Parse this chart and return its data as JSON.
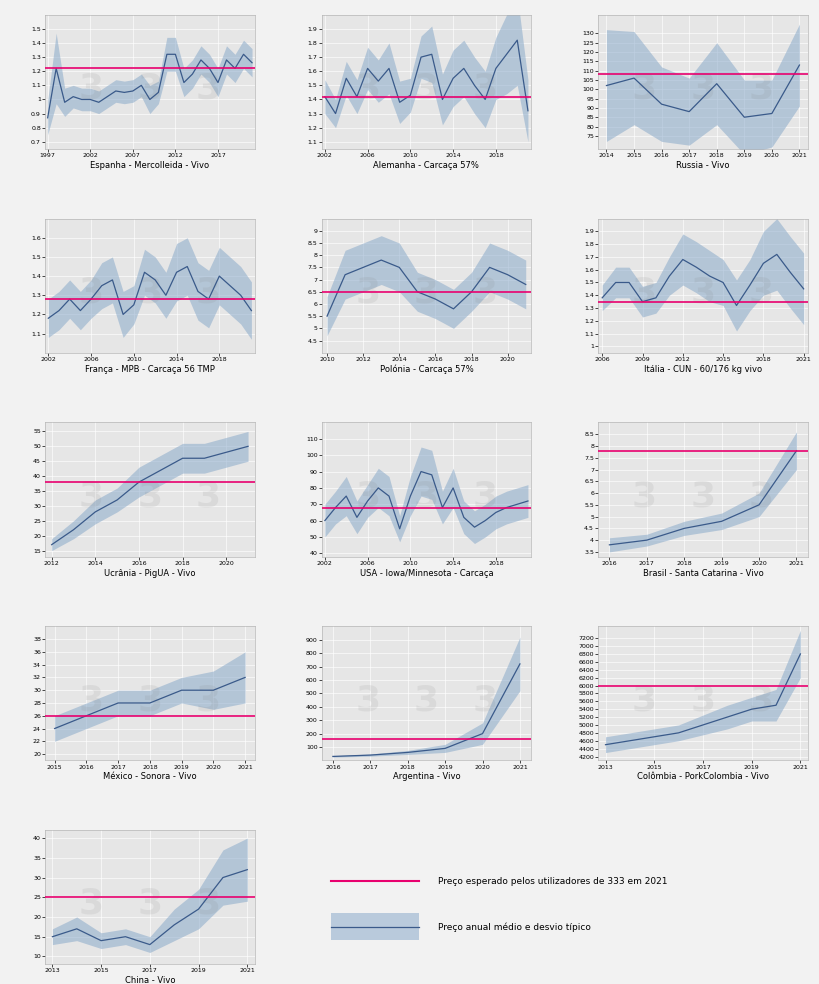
{
  "background_color": "#f2f2f2",
  "plot_bg_color": "#e6e6e6",
  "line_color": "#3a5a8a",
  "fill_color": "#8aaaca",
  "median_color": "#e8006e",
  "panels": [
    {
      "title": "Espanha - Mercolleida - Vivo",
      "years": [
        1997,
        1998,
        1999,
        2000,
        2001,
        2002,
        2003,
        2004,
        2005,
        2006,
        2007,
        2008,
        2009,
        2010,
        2011,
        2012,
        2013,
        2014,
        2015,
        2016,
        2017,
        2018,
        2019,
        2020,
        2021
      ],
      "mean": [
        0.87,
        1.22,
        0.98,
        1.02,
        1.0,
        1.0,
        0.98,
        1.02,
        1.06,
        1.05,
        1.06,
        1.1,
        1.0,
        1.05,
        1.32,
        1.32,
        1.12,
        1.18,
        1.28,
        1.22,
        1.12,
        1.28,
        1.22,
        1.32,
        1.26
      ],
      "std": [
        0.12,
        0.25,
        0.1,
        0.08,
        0.08,
        0.08,
        0.08,
        0.08,
        0.08,
        0.08,
        0.08,
        0.08,
        0.1,
        0.08,
        0.12,
        0.12,
        0.1,
        0.1,
        0.1,
        0.1,
        0.1,
        0.1,
        0.1,
        0.1,
        0.1
      ],
      "median": 1.22,
      "ylim": [
        0.65,
        1.6
      ],
      "yticks": [
        0.7,
        0.8,
        0.9,
        1.0,
        1.1,
        1.2,
        1.3,
        1.4,
        1.5
      ],
      "xtick_step": 5
    },
    {
      "title": "Alemanha - Carcaça 57%",
      "years": [
        2002,
        2003,
        2004,
        2005,
        2006,
        2007,
        2008,
        2009,
        2010,
        2011,
        2012,
        2013,
        2014,
        2015,
        2016,
        2017,
        2018,
        2019,
        2020,
        2021
      ],
      "mean": [
        1.42,
        1.3,
        1.55,
        1.42,
        1.62,
        1.53,
        1.62,
        1.38,
        1.43,
        1.7,
        1.72,
        1.4,
        1.55,
        1.62,
        1.5,
        1.4,
        1.62,
        1.72,
        1.82,
        1.32
      ],
      "std": [
        0.12,
        0.1,
        0.12,
        0.12,
        0.15,
        0.15,
        0.18,
        0.15,
        0.12,
        0.15,
        0.2,
        0.18,
        0.2,
        0.2,
        0.2,
        0.2,
        0.22,
        0.28,
        0.32,
        0.22
      ],
      "median": 1.42,
      "ylim": [
        1.05,
        2.0
      ],
      "yticks": [
        1.1,
        1.2,
        1.3,
        1.4,
        1.5,
        1.6,
        1.7,
        1.8,
        1.9
      ],
      "xtick_step": 4
    },
    {
      "title": "Russia - Vivo",
      "years": [
        2014,
        2015,
        2016,
        2017,
        2018,
        2019,
        2020,
        2021
      ],
      "mean": [
        102,
        106,
        92,
        88,
        103,
        85,
        87,
        113
      ],
      "std": [
        30,
        25,
        20,
        18,
        22,
        20,
        18,
        22
      ],
      "median": 108,
      "ylim": [
        68,
        140
      ],
      "yticks": [
        75,
        80,
        85,
        90,
        95,
        100,
        105,
        110,
        115,
        120,
        125,
        130
      ],
      "xtick_step": 1
    },
    {
      "title": "França - MPB - Carcaça 56 TMP",
      "years": [
        2002,
        2003,
        2004,
        2005,
        2006,
        2007,
        2008,
        2009,
        2010,
        2011,
        2012,
        2013,
        2014,
        2015,
        2016,
        2017,
        2018,
        2019,
        2020,
        2021
      ],
      "mean": [
        1.18,
        1.22,
        1.28,
        1.22,
        1.28,
        1.35,
        1.38,
        1.2,
        1.25,
        1.42,
        1.38,
        1.3,
        1.42,
        1.45,
        1.32,
        1.28,
        1.4,
        1.35,
        1.3,
        1.22
      ],
      "std": [
        0.1,
        0.1,
        0.1,
        0.1,
        0.1,
        0.12,
        0.12,
        0.12,
        0.1,
        0.12,
        0.12,
        0.12,
        0.15,
        0.15,
        0.15,
        0.15,
        0.15,
        0.15,
        0.15,
        0.15
      ],
      "median": 1.28,
      "ylim": [
        1.0,
        1.7
      ],
      "yticks": [
        1.1,
        1.2,
        1.3,
        1.4,
        1.5,
        1.6
      ],
      "xtick_step": 4
    },
    {
      "title": "Polónia - Carcaça 57%",
      "years": [
        2010,
        2011,
        2012,
        2013,
        2014,
        2015,
        2016,
        2017,
        2018,
        2019,
        2020,
        2021
      ],
      "mean": [
        5.5,
        7.2,
        7.5,
        7.8,
        7.5,
        6.5,
        6.2,
        5.8,
        6.5,
        7.5,
        7.2,
        6.8
      ],
      "std": [
        0.8,
        1.0,
        1.0,
        1.0,
        1.0,
        0.8,
        0.8,
        0.8,
        0.8,
        1.0,
        1.0,
        1.0
      ],
      "median": 6.5,
      "ylim": [
        4.0,
        9.5
      ],
      "yticks": [
        4.5,
        5.0,
        5.5,
        6.0,
        6.5,
        7.0,
        7.5,
        8.0,
        8.5,
        9.0
      ],
      "xtick_step": 2
    },
    {
      "title": "Itália - CUN - 60/176 kg vivo",
      "years": [
        2006,
        2007,
        2008,
        2009,
        2010,
        2011,
        2012,
        2013,
        2014,
        2015,
        2016,
        2017,
        2018,
        2019,
        2020,
        2021
      ],
      "mean": [
        1.38,
        1.5,
        1.5,
        1.35,
        1.38,
        1.55,
        1.68,
        1.62,
        1.55,
        1.5,
        1.32,
        1.48,
        1.65,
        1.72,
        1.58,
        1.45
      ],
      "std": [
        0.1,
        0.12,
        0.12,
        0.12,
        0.12,
        0.15,
        0.2,
        0.2,
        0.2,
        0.18,
        0.2,
        0.2,
        0.25,
        0.28,
        0.28,
        0.28
      ],
      "median": 1.35,
      "ylim": [
        0.95,
        2.0
      ],
      "yticks": [
        1.0,
        1.1,
        1.2,
        1.3,
        1.4,
        1.5,
        1.6,
        1.7,
        1.8,
        1.9
      ],
      "xtick_step": 3
    },
    {
      "title": "Ucrânia - PigUA - Vivo",
      "years": [
        2012,
        2013,
        2014,
        2015,
        2016,
        2017,
        2018,
        2019,
        2020,
        2021
      ],
      "mean": [
        17,
        22,
        28,
        32,
        38,
        42,
        46,
        46,
        48,
        50
      ],
      "std": [
        2,
        3,
        4,
        4,
        5,
        5,
        5,
        5,
        5,
        5
      ],
      "median": 38,
      "ylim": [
        13,
        58
      ],
      "yticks": [
        15,
        20,
        25,
        30,
        35,
        40,
        45,
        50,
        55
      ],
      "xtick_step": 2
    },
    {
      "title": "USA - Iowa/Minnesota - Carcaça",
      "years": [
        2002,
        2003,
        2004,
        2005,
        2006,
        2007,
        2008,
        2009,
        2010,
        2011,
        2012,
        2013,
        2014,
        2015,
        2016,
        2017,
        2018,
        2019,
        2020,
        2021
      ],
      "mean": [
        60,
        68,
        75,
        62,
        72,
        80,
        75,
        55,
        75,
        90,
        88,
        68,
        80,
        62,
        56,
        60,
        65,
        68,
        70,
        72
      ],
      "std": [
        10,
        10,
        12,
        10,
        10,
        12,
        12,
        8,
        12,
        15,
        15,
        10,
        12,
        10,
        10,
        10,
        10,
        10,
        10,
        10
      ],
      "median": 68,
      "ylim": [
        38,
        120
      ],
      "yticks": [
        40,
        50,
        60,
        70,
        80,
        90,
        100,
        110
      ],
      "xtick_step": 4
    },
    {
      "title": "Brasil - Santa Catarina - Vivo",
      "years": [
        2016,
        2017,
        2018,
        2019,
        2020,
        2021
      ],
      "mean": [
        3.8,
        4.0,
        4.5,
        4.8,
        5.5,
        7.8
      ],
      "std": [
        0.3,
        0.25,
        0.3,
        0.35,
        0.5,
        0.8
      ],
      "median": 7.8,
      "ylim": [
        3.3,
        9.0
      ],
      "yticks": [
        3.5,
        4.0,
        4.5,
        5.0,
        5.5,
        6.0,
        6.5,
        7.0,
        7.5,
        8.0,
        8.5
      ],
      "xtick_step": 1
    },
    {
      "title": "México - Sonora - Vivo",
      "years": [
        2015,
        2016,
        2017,
        2018,
        2019,
        2020,
        2021
      ],
      "mean": [
        24,
        26,
        28,
        28,
        30,
        30,
        32
      ],
      "std": [
        2,
        2,
        2,
        2,
        2,
        3,
        4
      ],
      "median": 26,
      "ylim": [
        19,
        40
      ],
      "yticks": [
        20,
        22,
        24,
        26,
        28,
        30,
        32,
        34,
        36,
        38
      ],
      "xtick_step": 1
    },
    {
      "title": "Argentina - Vivo",
      "years": [
        2016,
        2017,
        2018,
        2019,
        2020,
        2021
      ],
      "mean": [
        30,
        40,
        60,
        90,
        200,
        720
      ],
      "std": [
        5,
        8,
        15,
        30,
        80,
        200
      ],
      "median": 160,
      "ylim": [
        0,
        1000
      ],
      "yticks": [
        100,
        200,
        300,
        400,
        500,
        600,
        700,
        800,
        900
      ],
      "xtick_step": 1
    },
    {
      "title": "Colômbia - PorkColombia - Vivo",
      "years": [
        2013,
        2014,
        2015,
        2016,
        2017,
        2018,
        2019,
        2020,
        2021
      ],
      "mean": [
        4500,
        4600,
        4700,
        4800,
        5000,
        5200,
        5400,
        5500,
        6800
      ],
      "std": [
        200,
        200,
        200,
        200,
        250,
        300,
        300,
        400,
        600
      ],
      "median": 6000,
      "ylim": [
        4100,
        7500
      ],
      "yticks": [
        4200,
        4400,
        4600,
        4800,
        5000,
        5200,
        5400,
        5600,
        5800,
        6000,
        6200,
        6400,
        6600,
        6800,
        7000,
        7200
      ],
      "xtick_step": 2
    },
    {
      "title": "China - Vivo",
      "years": [
        2013,
        2014,
        2015,
        2016,
        2017,
        2018,
        2019,
        2020,
        2021
      ],
      "mean": [
        15,
        17,
        14,
        15,
        13,
        18,
        22,
        30,
        32
      ],
      "std": [
        2,
        3,
        2,
        2,
        2,
        4,
        5,
        7,
        8
      ],
      "median": 25,
      "ylim": [
        8,
        42
      ],
      "yticks": [
        10,
        15,
        20,
        25,
        30,
        35,
        40
      ],
      "xtick_step": 2
    }
  ],
  "legend_median_label": "Preço esperado pelos utilizadores de 333 em 2021",
  "legend_band_label": "Preço anual médio e desvio típico"
}
